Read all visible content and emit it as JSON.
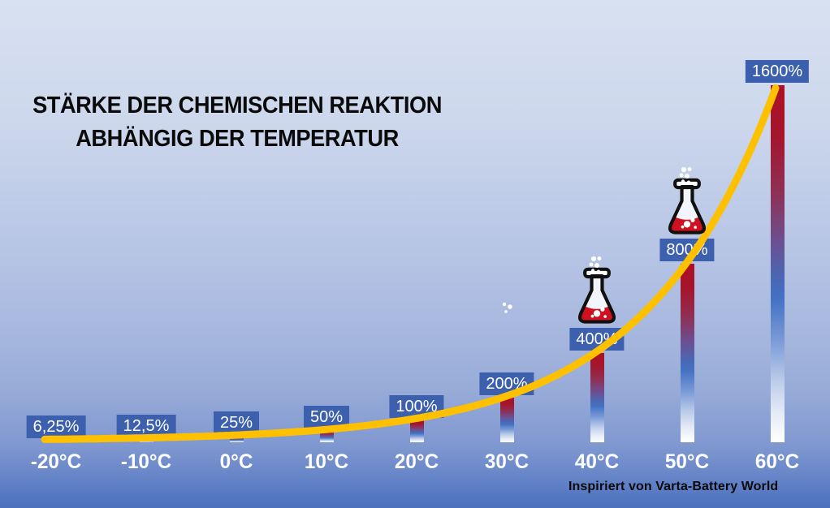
{
  "title": {
    "line1": "STÄRKE DER CHEMISCHEN REAKTION",
    "line2": "ABHÄNGIG DER TEMPERATUR"
  },
  "credit": "Inspiriert von Varta-Battery World",
  "chart_data": {
    "type": "bar",
    "title": "Stärke der chemischen Reaktion abhängig der Temperatur",
    "categories": [
      "-20°C",
      "-10°C",
      "0°C",
      "10°C",
      "20°C",
      "30°C",
      "40°C",
      "50°C",
      "60°C"
    ],
    "values": [
      6.25,
      12.5,
      25,
      50,
      100,
      200,
      400,
      800,
      1600
    ],
    "value_labels": [
      "6,25%",
      "12,5%",
      "25%",
      "50%",
      "100%",
      "200%",
      "400%",
      "800%",
      "1600%"
    ],
    "xlabel": "",
    "ylabel": "",
    "ylim": [
      0,
      1600
    ],
    "grid": false,
    "legend": false,
    "overlay_curve": {
      "type": "exponential",
      "description": "reaction strength doubles every 10°C",
      "color": "#ffc000"
    },
    "annotations": [
      {
        "category": "30°C",
        "flask": false,
        "bubbles": true
      },
      {
        "category": "40°C",
        "flask": true,
        "bubbles": true
      },
      {
        "category": "50°C",
        "flask": true,
        "bubbles": true
      }
    ]
  },
  "colors": {
    "background_top": "#d8e1f1",
    "background_bottom": "#4c70bc",
    "bar_gradient_top": "#ab1026",
    "bar_gradient_mid": "#4472c4",
    "bar_gradient_bottom": "#ffffff",
    "value_label_box": "#3c60ae",
    "value_label_text": "#ffffff",
    "curve": "#ffc000",
    "axis_label_text": "#ffffff",
    "title_text": "#0a0a0a",
    "flask_liquid": "#cf1020"
  }
}
